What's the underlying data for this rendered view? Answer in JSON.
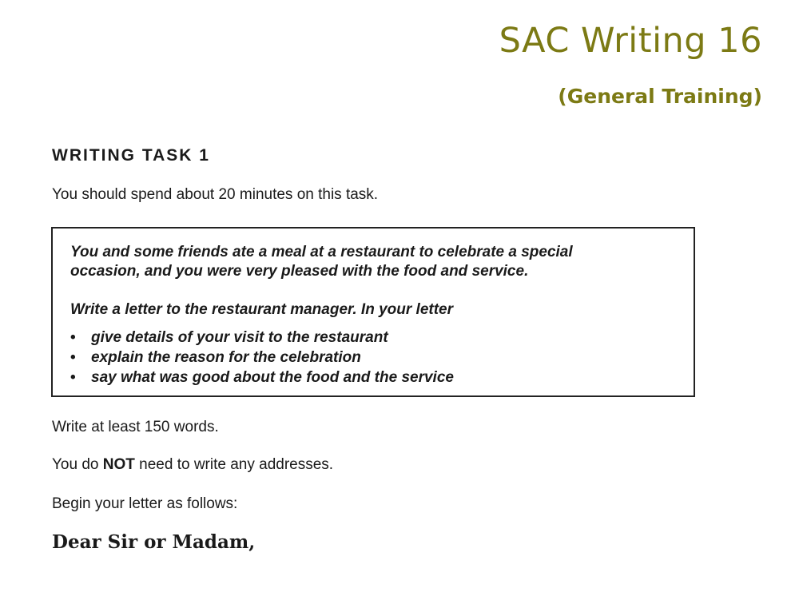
{
  "header": {
    "title": "SAC Writing 16",
    "subtitle": "(General Training)"
  },
  "task": {
    "heading": "WRITING TASK 1",
    "time_instruction": "You should spend about 20 minutes on this task.",
    "prompt_line1": "You and some friends ate a meal at a restaurant to celebrate a special",
    "prompt_line2": "occasion, and you were very pleased with the food and service.",
    "letter_intro": "Write a letter to the restaurant manager. In your letter",
    "bullet_symbol": "•",
    "bullets": [
      "give details of your visit to the restaurant",
      "explain the reason for the celebration",
      "say what was good about the food and the service"
    ]
  },
  "instructions": {
    "word_count": "Write at least 150 words.",
    "addresses_prefix": "You do ",
    "addresses_emphasis": "NOT",
    "addresses_suffix": " need to write any addresses.",
    "begin": "Begin your letter as follows:",
    "salutation": "Dear Sir or Madam,"
  },
  "colors": {
    "title": "#7c7a14",
    "text": "#1a1a1a"
  }
}
